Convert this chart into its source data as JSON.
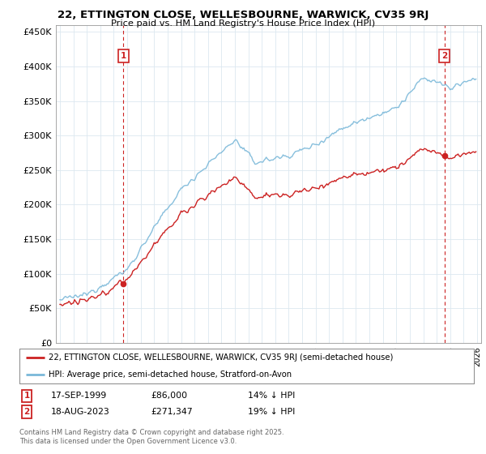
{
  "title_line1": "22, ETTINGTON CLOSE, WELLESBOURNE, WARWICK, CV35 9RJ",
  "title_line2": "Price paid vs. HM Land Registry's House Price Index (HPI)",
  "legend_line1": "22, ETTINGTON CLOSE, WELLESBOURNE, WARWICK, CV35 9RJ (semi-detached house)",
  "legend_line2": "HPI: Average price, semi-detached house, Stratford-on-Avon",
  "footnote": "Contains HM Land Registry data © Crown copyright and database right 2025.\nThis data is licensed under the Open Government Licence v3.0.",
  "marker1_date": "17-SEP-1999",
  "marker1_price": "£86,000",
  "marker1_hpi": "14% ↓ HPI",
  "marker2_date": "18-AUG-2023",
  "marker2_price": "£271,347",
  "marker2_hpi": "19% ↓ HPI",
  "hpi_color": "#7ab8d9",
  "price_color": "#cc2222",
  "marker_box_color": "#cc2222",
  "grid_color": "#dce8f0",
  "background_color": "#ffffff",
  "ylim": [
    0,
    460000
  ],
  "ytick_values": [
    0,
    50000,
    100000,
    150000,
    200000,
    250000,
    300000,
    350000,
    400000,
    450000
  ],
  "ytick_labels": [
    "£0",
    "£50K",
    "£100K",
    "£150K",
    "£200K",
    "£250K",
    "£300K",
    "£350K",
    "£400K",
    "£450K"
  ],
  "xlim_start": 1994.7,
  "xlim_end": 2026.3,
  "marker1_x": 1999.71,
  "marker1_y": 86000,
  "marker2_x": 2023.58,
  "marker2_y": 271347
}
